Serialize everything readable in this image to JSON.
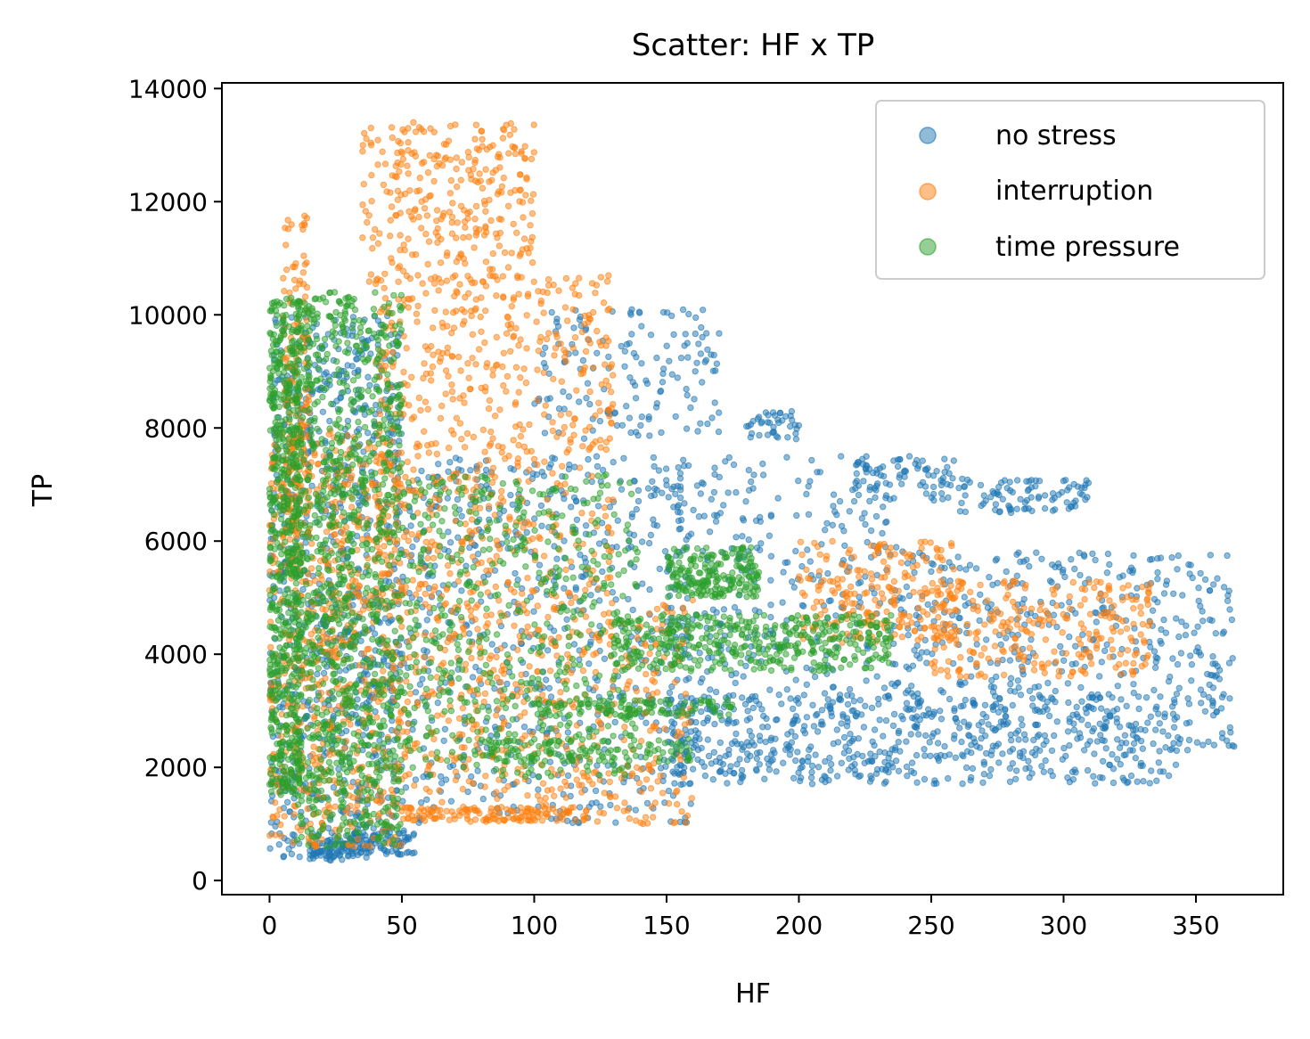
{
  "chart_data": {
    "type": "scatter",
    "title": "Scatter: HF x TP",
    "xlabel": "HF",
    "ylabel": "TP",
    "xlim": [
      -18,
      383
    ],
    "ylim": [
      -250,
      14100
    ],
    "xticks": [
      0,
      50,
      100,
      150,
      200,
      250,
      300,
      350
    ],
    "yticks": [
      0,
      2000,
      4000,
      6000,
      8000,
      10000,
      12000,
      14000
    ],
    "grid": false,
    "legend_position": "top-right",
    "series": [
      {
        "name": "no stress",
        "color": "#1f77b4",
        "clusters": [
          {
            "x": [
              0,
              50
            ],
            "y": [
              400,
              10000
            ],
            "count": 900
          },
          {
            "x": [
              15,
              30
            ],
            "y": [
              350,
              700
            ],
            "count": 60
          },
          {
            "x": [
              30,
              55
            ],
            "y": [
              450,
              900
            ],
            "count": 80
          },
          {
            "x": [
              50,
              160
            ],
            "y": [
              1000,
              7500
            ],
            "count": 650
          },
          {
            "x": [
              100,
              170
            ],
            "y": [
              7800,
              10100
            ],
            "count": 150
          },
          {
            "x": [
              150,
              240
            ],
            "y": [
              1700,
              7500
            ],
            "count": 420
          },
          {
            "x": [
              180,
              200
            ],
            "y": [
              7800,
              8300
            ],
            "count": 40
          },
          {
            "x": [
              220,
              260
            ],
            "y": [
              6700,
              7500
            ],
            "count": 80
          },
          {
            "x": [
              260,
              310
            ],
            "y": [
              6500,
              7100
            ],
            "count": 90
          },
          {
            "x": [
              240,
              365
            ],
            "y": [
              2200,
              5800
            ],
            "count": 520
          },
          {
            "x": [
              150,
              345
            ],
            "y": [
              1700,
              3300
            ],
            "count": 450
          }
        ]
      },
      {
        "name": "interruption",
        "color": "#ff7f0e",
        "clusters": [
          {
            "x": [
              5,
              15
            ],
            "y": [
              6000,
              11800
            ],
            "count": 160
          },
          {
            "x": [
              35,
              100
            ],
            "y": [
              10500,
              13400
            ],
            "count": 300
          },
          {
            "x": [
              40,
              130
            ],
            "y": [
              5000,
              10700
            ],
            "count": 620
          },
          {
            "x": [
              0,
              50
            ],
            "y": [
              600,
              8000
            ],
            "count": 700
          },
          {
            "x": [
              50,
              160
            ],
            "y": [
              1000,
              5000
            ],
            "count": 520
          },
          {
            "x": [
              50,
              120
            ],
            "y": [
              1050,
              1300
            ],
            "count": 110
          },
          {
            "x": [
              200,
              260
            ],
            "y": [
              4200,
              6000
            ],
            "count": 220
          },
          {
            "x": [
              250,
              333
            ],
            "y": [
              3600,
              5300
            ],
            "count": 260
          }
        ]
      },
      {
        "name": "time pressure",
        "color": "#2ca02c",
        "clusters": [
          {
            "x": [
              0,
              12
            ],
            "y": [
              1500,
              10300
            ],
            "count": 650
          },
          {
            "x": [
              10,
              50
            ],
            "y": [
              600,
              10400
            ],
            "count": 1100
          },
          {
            "x": [
              50,
              140
            ],
            "y": [
              1800,
              7200
            ],
            "count": 550
          },
          {
            "x": [
              150,
              185
            ],
            "y": [
              5000,
              5900
            ],
            "count": 200
          },
          {
            "x": [
              130,
              235
            ],
            "y": [
              3700,
              4700
            ],
            "count": 420
          },
          {
            "x": [
              100,
              175
            ],
            "y": [
              2900,
              3200
            ],
            "count": 110
          },
          {
            "x": [
              80,
              160
            ],
            "y": [
              2100,
              2500
            ],
            "count": 110
          }
        ]
      }
    ]
  }
}
